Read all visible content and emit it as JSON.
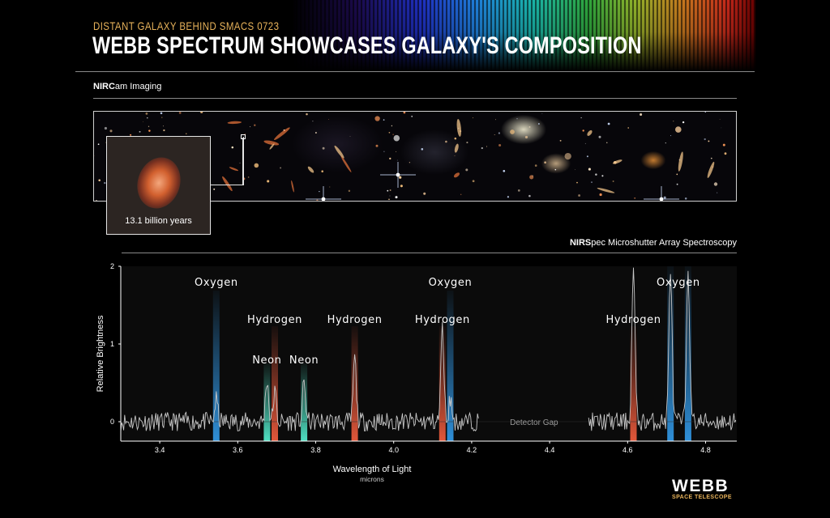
{
  "header": {
    "kicker": "DISTANT GALAXY BEHIND SMACS 0723",
    "title": "WEBB SPECTRUM SHOWCASES GALAXY'S COMPOSITION"
  },
  "imaging": {
    "label_bold": "NIRC",
    "label_rest": "am Imaging",
    "inset_caption": "13.1 billion years"
  },
  "spectroscopy": {
    "label_bold": "NIRS",
    "label_rest": "pec Microshutter Array Spectroscopy"
  },
  "colors": {
    "oxygen": "#2f8fd8",
    "hydrogen": "#e2573a",
    "neon": "#4fe0c2",
    "spectrum": "#c8c8c8",
    "kicker": "#e7b25a"
  },
  "chart_data": {
    "type": "line",
    "xlabel": "Wavelength of Light",
    "xlabel_unit": "microns",
    "ylabel": "Relative Brightness",
    "xlim": [
      3.3,
      4.88
    ],
    "ylim": [
      -0.25,
      2.0
    ],
    "x_ticks": [
      "3.4",
      "3.6",
      "3.8",
      "4.0",
      "4.2",
      "4.4",
      "4.6",
      "4.8"
    ],
    "y_ticks": [
      "0",
      "1",
      "2"
    ],
    "detector_gap": {
      "from": 4.22,
      "to": 4.5,
      "label": "Detector Gap"
    },
    "emission_lines": [
      {
        "element": "Oxygen",
        "wavelength": 3.545,
        "type": "oxygen",
        "peak": 0.28
      },
      {
        "element": "Neon",
        "wavelength": 3.675,
        "type": "neon",
        "peak": 0.55
      },
      {
        "element": "Hydrogen",
        "wavelength": 3.695,
        "type": "hydrogen",
        "peak": 0.38
      },
      {
        "element": "Neon",
        "wavelength": 3.77,
        "type": "neon",
        "peak": 0.48
      },
      {
        "element": "Hydrogen",
        "wavelength": 3.9,
        "type": "hydrogen",
        "peak": 0.82
      },
      {
        "element": "Hydrogen",
        "wavelength": 4.125,
        "type": "hydrogen",
        "peak": 1.2
      },
      {
        "element": "Oxygen",
        "wavelength": 4.145,
        "type": "oxygen",
        "peak": 0.3
      },
      {
        "element": "Hydrogen",
        "wavelength": 4.615,
        "type": "hydrogen",
        "peak": 2.0
      },
      {
        "element": "Oxygen",
        "wavelength": 4.71,
        "type": "oxygen",
        "peak": 2.0
      },
      {
        "element": "Oxygen",
        "wavelength": 4.755,
        "type": "oxygen",
        "peak": 2.0
      }
    ],
    "line_labels": [
      {
        "text": "Oxygen",
        "x": 3.545,
        "y": 1.75
      },
      {
        "text": "Hydrogen",
        "x": 3.695,
        "y": 1.27
      },
      {
        "text": "Neon",
        "x": 3.675,
        "y": 0.75
      },
      {
        "text": "Neon",
        "x": 3.77,
        "y": 0.75
      },
      {
        "text": "Hydrogen",
        "x": 3.9,
        "y": 1.27
      },
      {
        "text": "Hydrogen",
        "x": 4.125,
        "y": 1.27
      },
      {
        "text": "Oxygen",
        "x": 4.145,
        "y": 1.75
      },
      {
        "text": "Hydrogen",
        "x": 4.615,
        "y": 1.27
      },
      {
        "text": "Oxygen",
        "x": 4.73,
        "y": 1.75
      }
    ],
    "noise_amplitude": 0.12
  },
  "logo": {
    "word": "WEBB",
    "sub": "SPACE TELESCOPE"
  }
}
